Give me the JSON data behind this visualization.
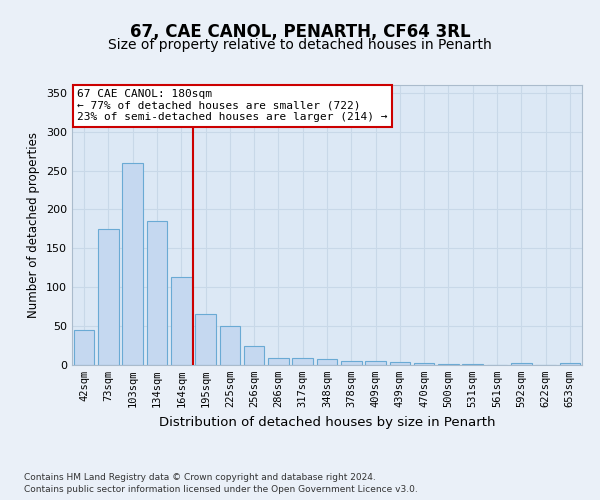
{
  "title": "67, CAE CANOL, PENARTH, CF64 3RL",
  "subtitle": "Size of property relative to detached houses in Penarth",
  "xlabel": "Distribution of detached houses by size in Penarth",
  "ylabel": "Number of detached properties",
  "categories": [
    "42sqm",
    "73sqm",
    "103sqm",
    "134sqm",
    "164sqm",
    "195sqm",
    "225sqm",
    "256sqm",
    "286sqm",
    "317sqm",
    "348sqm",
    "378sqm",
    "409sqm",
    "439sqm",
    "470sqm",
    "500sqm",
    "531sqm",
    "561sqm",
    "592sqm",
    "622sqm",
    "653sqm"
  ],
  "values": [
    45,
    175,
    260,
    185,
    113,
    65,
    50,
    25,
    9,
    9,
    8,
    5,
    5,
    4,
    2,
    1,
    1,
    0,
    2,
    0,
    2
  ],
  "bar_color": "#c5d8f0",
  "bar_edgecolor": "#6aaad4",
  "bar_linewidth": 0.8,
  "grid_color": "#c8d8e8",
  "bg_color": "#eaf0f8",
  "plot_bg_color": "#dce8f5",
  "red_line_x": 4.5,
  "annotation_text": "67 CAE CANOL: 180sqm\n← 77% of detached houses are smaller (722)\n23% of semi-detached houses are larger (214) →",
  "annotation_box_color": "#ffffff",
  "annotation_border_color": "#cc0000",
  "ylim": [
    0,
    360
  ],
  "yticks": [
    0,
    50,
    100,
    150,
    200,
    250,
    300,
    350
  ],
  "footer_line1": "Contains HM Land Registry data © Crown copyright and database right 2024.",
  "footer_line2": "Contains public sector information licensed under the Open Government Licence v3.0.",
  "title_fontsize": 12,
  "subtitle_fontsize": 10,
  "tick_fontsize": 7.5,
  "ylabel_fontsize": 8.5,
  "xlabel_fontsize": 9.5,
  "annotation_fontsize": 8,
  "footer_fontsize": 6.5
}
